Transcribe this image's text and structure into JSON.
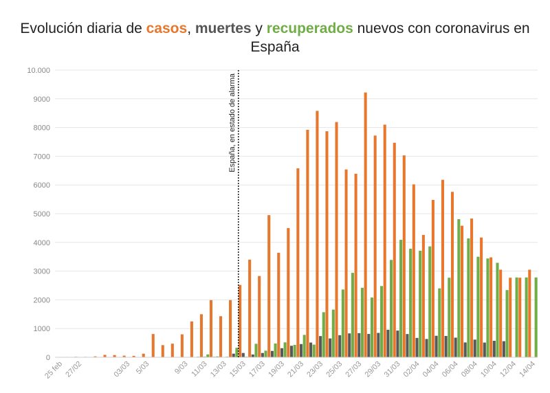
{
  "title": {
    "prefix": "Evolución diaria de ",
    "cases": "casos",
    "comma": ", ",
    "deaths": "muertes",
    "and": " y ",
    "recovered": "recuperados",
    "suffix": " nuevos con coronavirus en",
    "line2": "España"
  },
  "chart_data": {
    "type": "bar",
    "title": "Evolución diaria de casos, muertes y recuperados nuevos con coronavirus en España",
    "xlabel": "",
    "ylabel": "",
    "ylim": [
      0,
      10000
    ],
    "yticks": [
      0,
      1000,
      2000,
      3000,
      4000,
      5000,
      6000,
      7000,
      8000,
      9000,
      10000
    ],
    "ytick_labels": [
      "0",
      "1000",
      "2000",
      "3000",
      "4000",
      "5000",
      "6000",
      "7000",
      "8000",
      "9000",
      "10.000"
    ],
    "grid": true,
    "categories": [
      "25 feb",
      "26/02",
      "27/02",
      "28/02",
      "29/02",
      "01/03",
      "02/03",
      "03/03",
      "04/03",
      "5/03",
      "6/03",
      "7/03",
      "8/03",
      "9/03",
      "10/03",
      "11/03",
      "12/03",
      "13/03",
      "14/03",
      "15/03",
      "16/03",
      "17/03",
      "18/03",
      "19/03",
      "20/03",
      "21/03",
      "22/03",
      "23/03",
      "24/03",
      "25/03",
      "26/03",
      "27/03",
      "28/03",
      "29/03",
      "30/03",
      "31/03",
      "01/04",
      "02/04",
      "03/04",
      "04/04",
      "05/04",
      "06/04",
      "07/04",
      "08/04",
      "09/04",
      "10/04",
      "11/04",
      "12/04",
      "13/04",
      "14/04"
    ],
    "xtick_labels": [
      "25 feb",
      "27/02",
      "03/03",
      "5/03",
      "9/03",
      "11/03",
      "13/03",
      "15/03",
      "17/03",
      "19/03",
      "21/03",
      "23/03",
      "25/03",
      "27/03",
      "29/03",
      "31/03",
      "02/04",
      "04/04",
      "06/04",
      "08/04",
      "10/04",
      "12/04",
      "14/04"
    ],
    "xtick_indices": [
      0,
      2,
      7,
      9,
      13,
      15,
      17,
      19,
      21,
      23,
      25,
      27,
      29,
      31,
      33,
      35,
      37,
      39,
      41,
      43,
      45,
      47,
      49
    ],
    "series": [
      {
        "name": "casos",
        "color": "#e8772e",
        "values": [
          4,
          13,
          17,
          15,
          32,
          84,
          77,
          57,
          50,
          125,
          810,
          423,
          474,
          799,
          1249,
          1499,
          1990,
          1430,
          1990,
          2520,
          3400,
          2830,
          4950,
          3640,
          4500,
          6580,
          7920,
          8580,
          7870,
          8190,
          6540,
          6390,
          9220,
          7720,
          8100,
          7470,
          7030,
          6020,
          4260,
          5480,
          6180,
          5760,
          4580,
          4830,
          4170,
          3480,
          3050,
          2770,
          2770,
          3050
        ]
      },
      {
        "name": "muertes",
        "color": "#595959",
        "values": [
          0,
          0,
          0,
          0,
          0,
          0,
          0,
          0,
          0,
          3,
          2,
          5,
          8,
          7,
          11,
          19,
          17,
          12,
          126,
          150,
          96,
          150,
          221,
          316,
          400,
          460,
          513,
          738,
          655,
          769,
          832,
          840,
          812,
          849,
          958,
          930,
          809,
          674,
          637,
          749,
          743,
          683,
          516,
          615,
          512,
          574,
          560,
          0,
          0,
          0
        ]
      },
      {
        "name": "recuperados",
        "color": "#70ad47",
        "values": [
          0,
          0,
          0,
          0,
          0,
          0,
          0,
          0,
          0,
          0,
          0,
          0,
          0,
          0,
          20,
          100,
          30,
          20,
          330,
          20,
          470,
          230,
          480,
          520,
          430,
          780,
          440,
          1570,
          1660,
          2360,
          2940,
          2420,
          2080,
          2480,
          3390,
          4090,
          3780,
          3710,
          3860,
          2400,
          2770,
          4810,
          4140,
          3500,
          3440,
          3290,
          2340,
          2780,
          2780,
          2780
        ]
      }
    ],
    "annotations": [
      {
        "text": "España, en estado de alarma",
        "x": "15/03"
      }
    ]
  }
}
